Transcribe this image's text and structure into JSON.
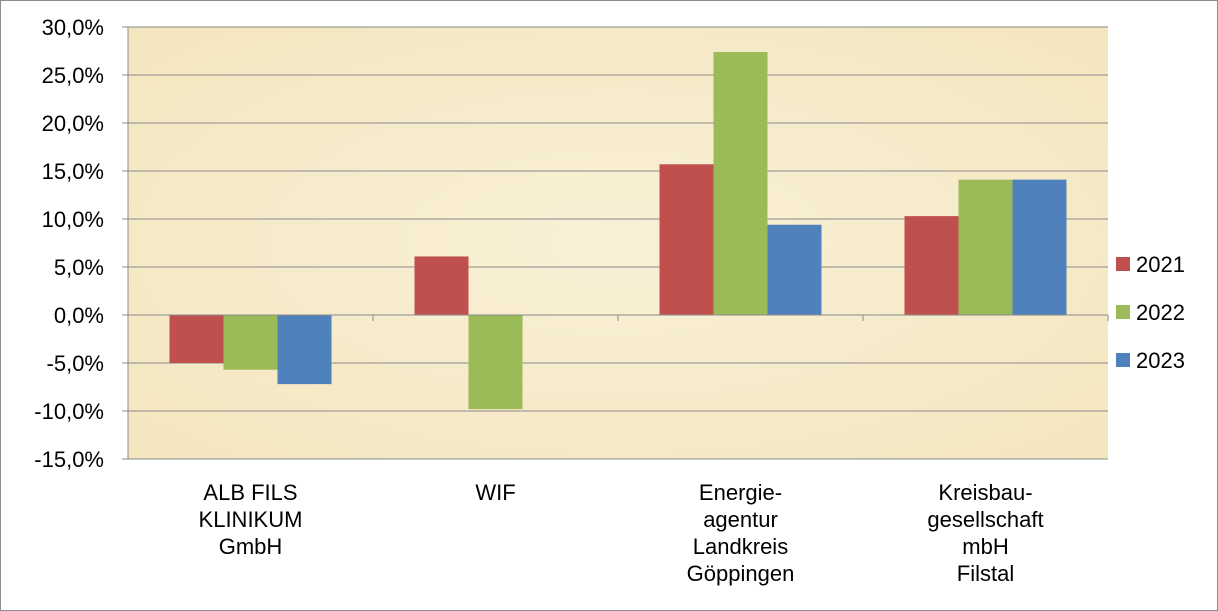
{
  "chart_data": {
    "type": "bar",
    "title": "",
    "xlabel": "",
    "ylabel": "",
    "categories": [
      [
        "ALB FILS",
        "KLINIKUM",
        "GmbH"
      ],
      [
        "WIF"
      ],
      [
        "Energie-",
        "agentur",
        "Landkreis",
        "Göppingen"
      ],
      [
        "Kreisbau-",
        "gesellschaft",
        "mbH",
        "Filstal"
      ]
    ],
    "series": [
      {
        "name": "2021",
        "color": "#c0504d",
        "values": [
          -5.0,
          6.1,
          15.7,
          10.3
        ]
      },
      {
        "name": "2022",
        "color": "#9bbb59",
        "values": [
          -5.7,
          -9.8,
          27.4,
          14.1
        ]
      },
      {
        "name": "2023",
        "color": "#4f81bd",
        "values": [
          -7.2,
          null,
          9.4,
          14.1
        ]
      }
    ],
    "ylim": [
      -15,
      30
    ],
    "yticks": [
      30,
      25,
      20,
      15,
      10,
      5,
      0,
      -5,
      -10,
      -15
    ],
    "ytick_labels": [
      "30,0%",
      "25,0%",
      "20,0%",
      "15,0%",
      "10,0%",
      "5,0%",
      "0,0%",
      "-5,0%",
      "-10,0%",
      "-15,0%"
    ],
    "grid": true,
    "legend_position": "right",
    "plot_background": "#f6ebc8"
  }
}
